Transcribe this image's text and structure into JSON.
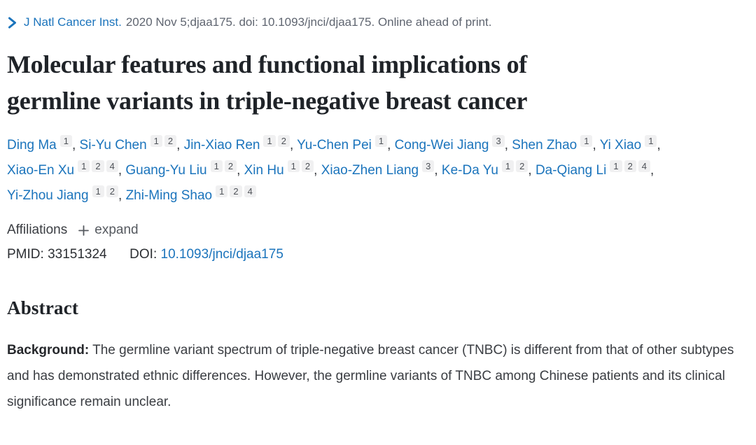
{
  "colors": {
    "link_blue": "#1b74bc",
    "citation_gray": "#5f6570",
    "heading_dark": "#1f2328",
    "body_text": "#3a3d42",
    "badge_bg": "#f0f0f1"
  },
  "citation": {
    "chevron_icon": "chevron-right-icon",
    "journal": "J Natl Cancer Inst.",
    "rest": "2020 Nov 5;djaa175. doi: 10.1093/jnci/djaa175. Online ahead of print."
  },
  "title": {
    "lines": [
      "Molecular features and functional implications of",
      "germline variants in triple-negative breast cancer"
    ],
    "full": "Molecular features and functional implications of germline variants in triple-negative breast cancer"
  },
  "authors": [
    {
      "name": "Ding Ma",
      "affs": [
        "1"
      ]
    },
    {
      "name": "Si-Yu Chen",
      "affs": [
        "1",
        "2"
      ]
    },
    {
      "name": "Jin-Xiao Ren",
      "affs": [
        "1",
        "2"
      ]
    },
    {
      "name": "Yu-Chen Pei",
      "affs": [
        "1"
      ]
    },
    {
      "name": "Cong-Wei Jiang",
      "affs": [
        "3"
      ]
    },
    {
      "name": "Shen Zhao",
      "affs": [
        "1"
      ]
    },
    {
      "name": "Yi Xiao",
      "affs": [
        "1"
      ]
    },
    {
      "name": "Xiao-En Xu",
      "affs": [
        "1",
        "2",
        "4"
      ]
    },
    {
      "name": "Guang-Yu Liu",
      "affs": [
        "1",
        "2"
      ]
    },
    {
      "name": "Xin Hu",
      "affs": [
        "1",
        "2"
      ]
    },
    {
      "name": "Xiao-Zhen Liang",
      "affs": [
        "3"
      ]
    },
    {
      "name": "Ke-Da Yu",
      "affs": [
        "1",
        "2"
      ]
    },
    {
      "name": "Da-Qiang Li",
      "affs": [
        "1",
        "2",
        "4"
      ]
    },
    {
      "name": "Yi-Zhou Jiang",
      "affs": [
        "1",
        "2"
      ]
    },
    {
      "name": "Zhi-Ming Shao",
      "affs": [
        "1",
        "2",
        "4"
      ]
    }
  ],
  "affiliations": {
    "label": "Affiliations",
    "expand_label": "expand"
  },
  "ids": {
    "pmid_label": "PMID:",
    "pmid_value": "33151324",
    "doi_label": "DOI:",
    "doi_value": "10.1093/jnci/djaa175"
  },
  "abstract": {
    "heading": "Abstract",
    "background_label": "Background:",
    "background_text": "The germline variant spectrum of triple-negative breast cancer (TNBC) is different from that of other subtypes and has demonstrated ethnic differences. However, the germline variants of TNBC among Chinese patients and its clinical significance remain unclear."
  }
}
